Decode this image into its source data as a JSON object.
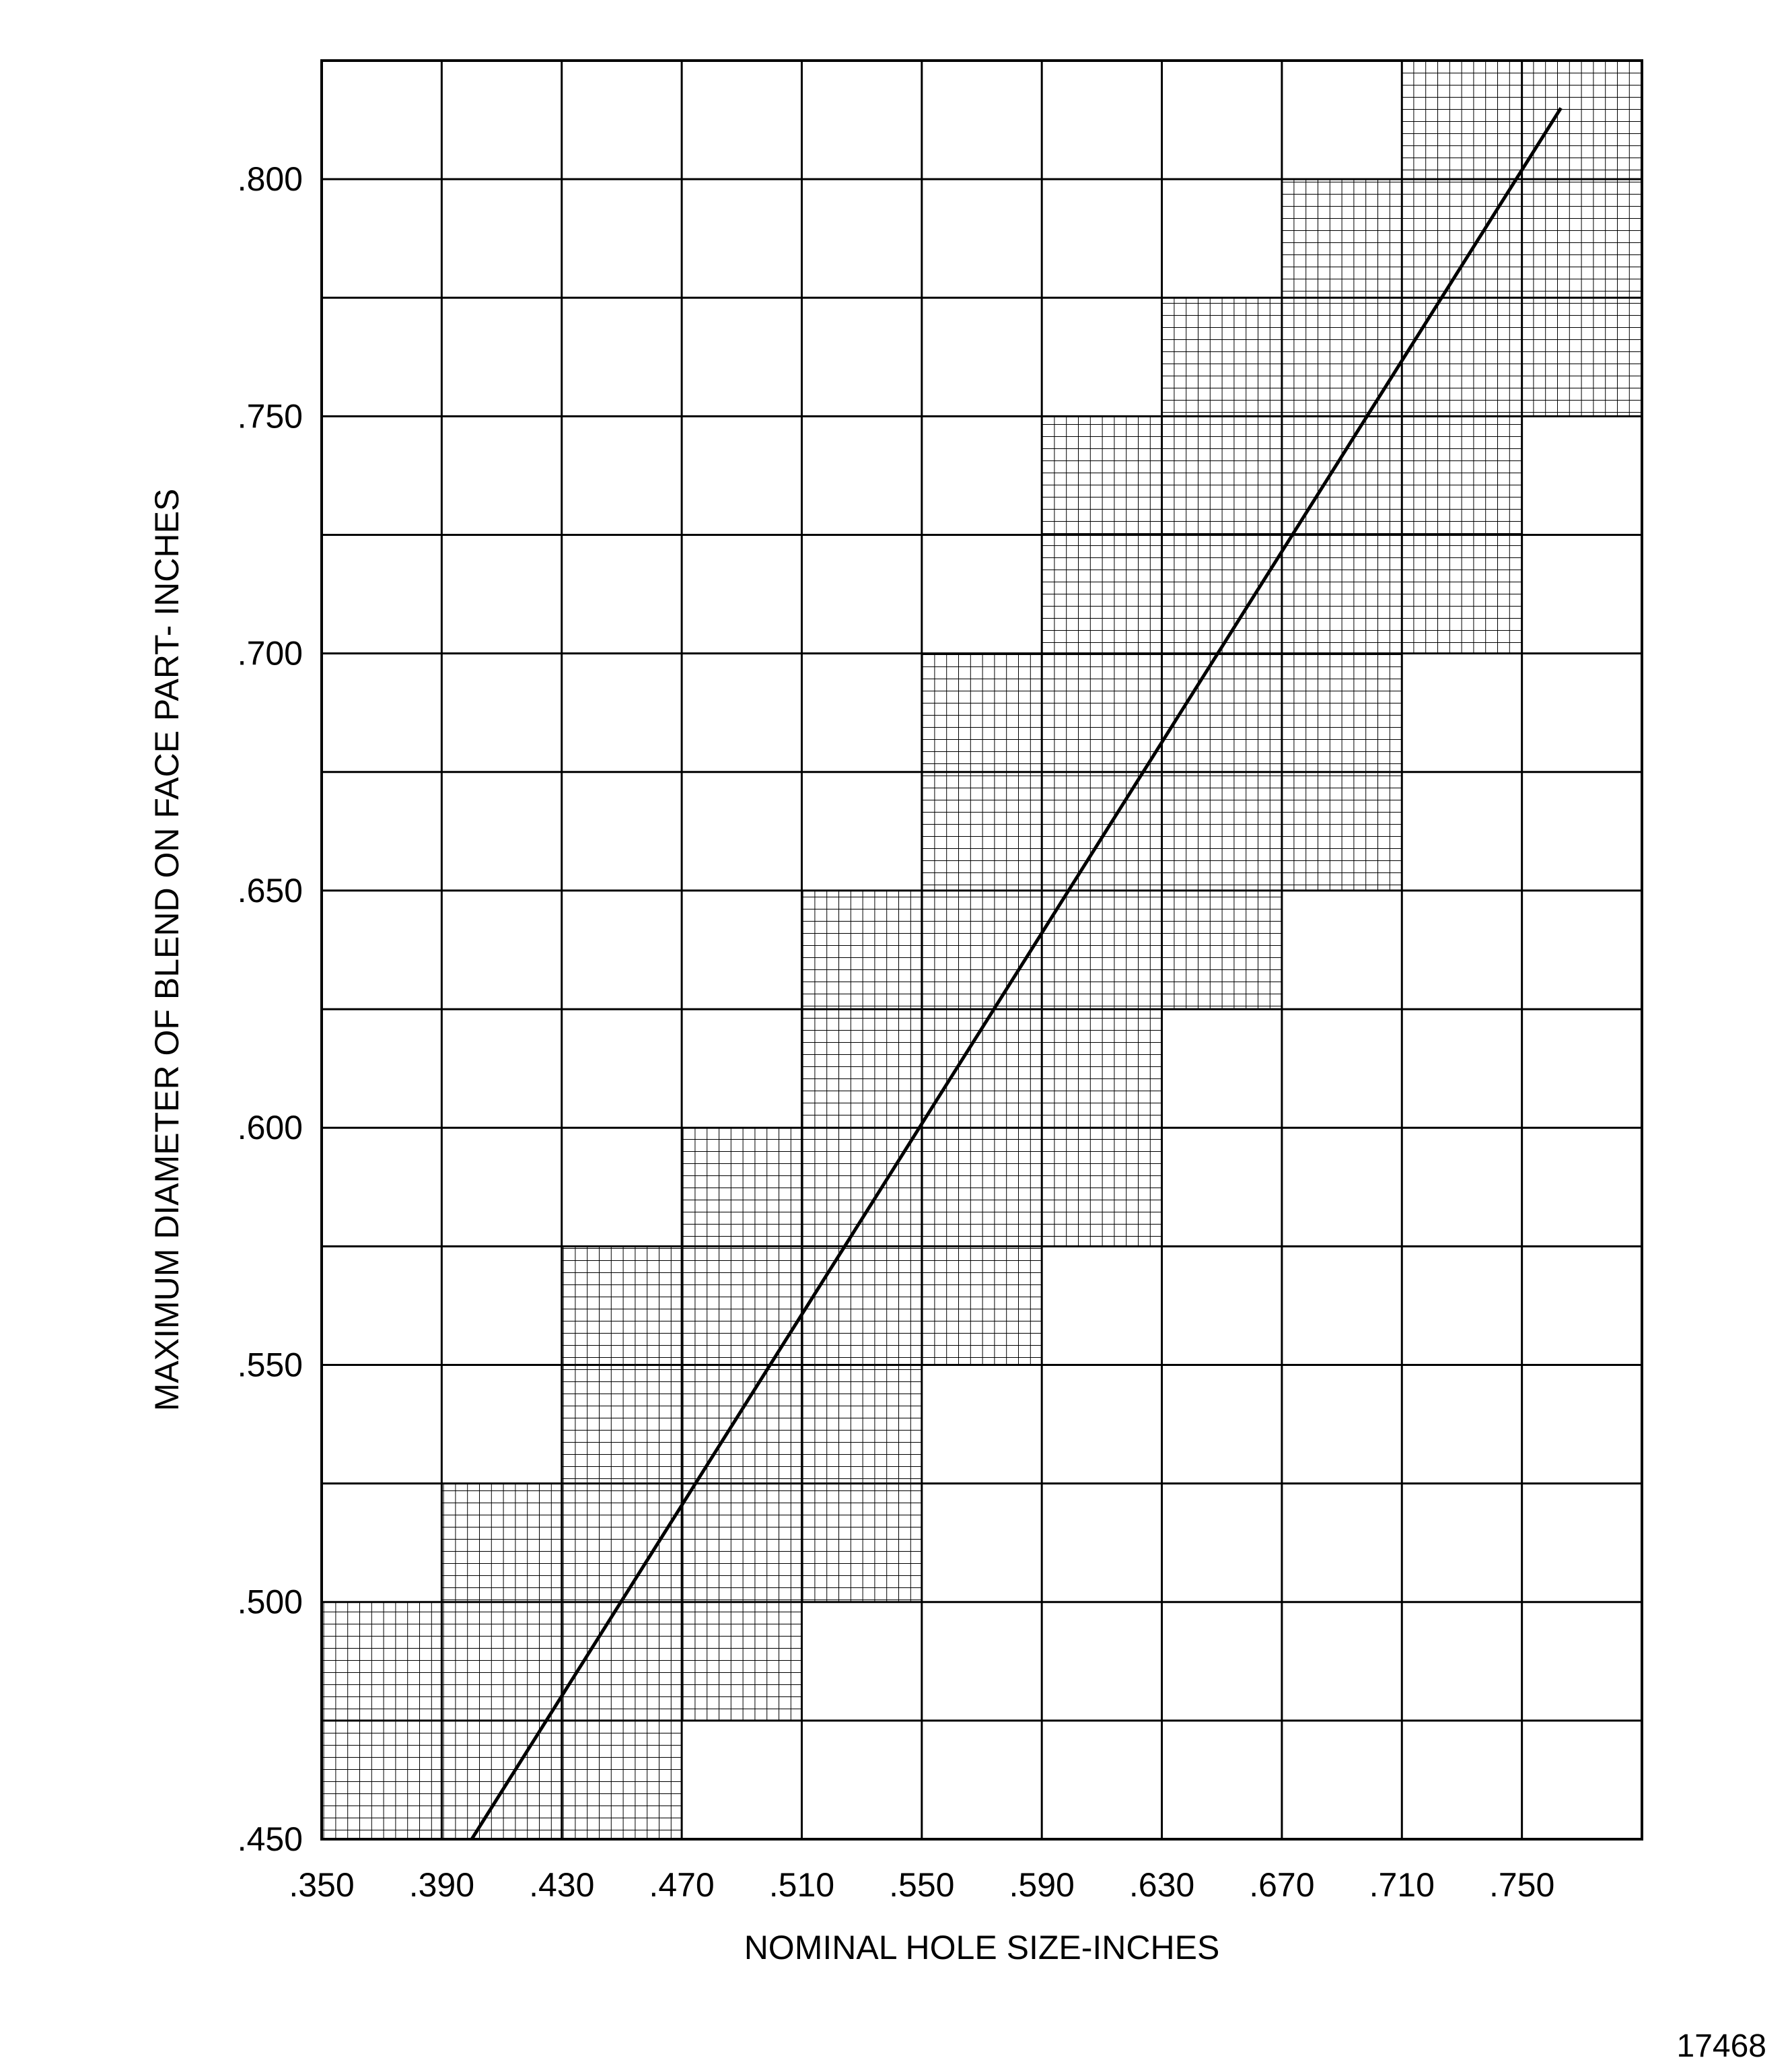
{
  "chart_data": {
    "type": "line",
    "title": "",
    "xlabel": "NOMINAL HOLE SIZE-INCHES",
    "ylabel": "MAXIMUM DIAMETER OF BLEND ON FACE PART- INCHES",
    "x_tick_labels": [
      ".350",
      ".390",
      ".430",
      ".470",
      ".510",
      ".550",
      ".590",
      ".630",
      ".670",
      ".710",
      ".750"
    ],
    "y_tick_labels": [
      ".450",
      ".500",
      ".550",
      ".600",
      ".650",
      ".700",
      ".750",
      ".800"
    ],
    "xlim": [
      0.35,
      0.79
    ],
    "ylim": [
      0.45,
      0.825
    ],
    "major_grid_x_step": 0.04,
    "major_grid_y_step": 0.025,
    "grid": true,
    "shaded_band": [
      {
        "x0": 0.35,
        "x1": 0.39,
        "y0": 0.45,
        "y1": 0.5
      },
      {
        "x0": 0.39,
        "x1": 0.43,
        "y0": 0.45,
        "y1": 0.525
      },
      {
        "x0": 0.43,
        "x1": 0.47,
        "y0": 0.45,
        "y1": 0.575
      },
      {
        "x0": 0.47,
        "x1": 0.51,
        "y0": 0.475,
        "y1": 0.6
      },
      {
        "x0": 0.51,
        "x1": 0.55,
        "y0": 0.5,
        "y1": 0.65
      },
      {
        "x0": 0.55,
        "x1": 0.59,
        "y0": 0.55,
        "y1": 0.7
      },
      {
        "x0": 0.59,
        "x1": 0.63,
        "y0": 0.575,
        "y1": 0.75
      },
      {
        "x0": 0.63,
        "x1": 0.67,
        "y0": 0.625,
        "y1": 0.775
      },
      {
        "x0": 0.67,
        "x1": 0.71,
        "y0": 0.65,
        "y1": 0.8
      },
      {
        "x0": 0.71,
        "x1": 0.75,
        "y0": 0.7,
        "y1": 0.825
      },
      {
        "x0": 0.75,
        "x1": 0.79,
        "y0": 0.75,
        "y1": 0.825
      }
    ],
    "series": [
      {
        "x": [
          0.4,
          0.763
        ],
        "y": [
          0.45,
          0.815
        ]
      }
    ]
  },
  "figure_id": "17468"
}
